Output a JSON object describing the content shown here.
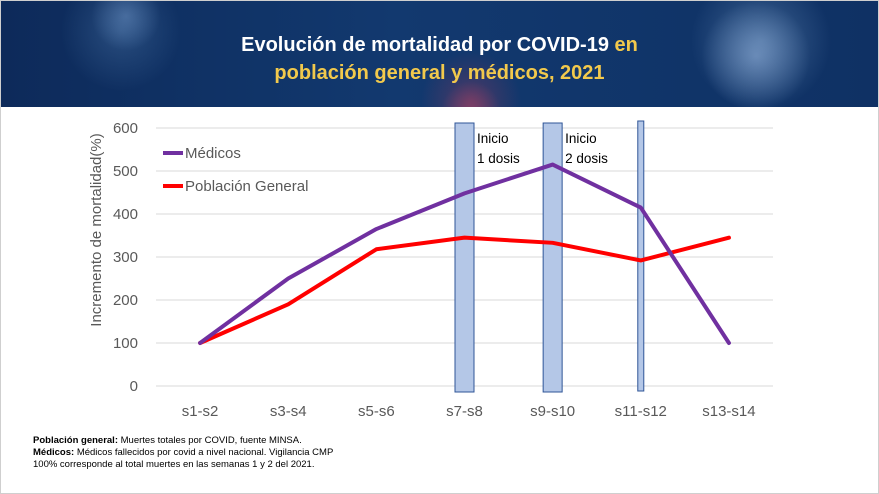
{
  "title": {
    "line1_white": "Evolución de mortalidad por COVID-19",
    "line1_yellow": "en",
    "line2_yellow": "población general y médicos, 2021"
  },
  "colors": {
    "medicos": "#7030a0",
    "poblacion": "#ff0000",
    "bands": "#b4c7e7",
    "bands_stroke": "#2f5597",
    "title_white": "#ffffff",
    "title_yellow": "#f2c94c"
  },
  "chart_data": {
    "type": "line",
    "title": "",
    "xlabel": "",
    "ylabel": "Incremento de mortalidad(%)",
    "ylim": [
      0,
      600
    ],
    "yticks": [
      "0",
      "100",
      "200",
      "300",
      "400",
      "500",
      "600"
    ],
    "grid": true,
    "legend_position": "top-left",
    "categories": [
      "s1-s2",
      "s3-s4",
      "s5-s6",
      "s7-s8",
      "s9-s10",
      "s11-s12",
      "s13-s14"
    ],
    "series": [
      {
        "name": "Médicos",
        "color": "#7030a0",
        "values": [
          100,
          250,
          365,
          448,
          515,
          415,
          100
        ]
      },
      {
        "name": "Población General",
        "color": "#ff0000",
        "values": [
          100,
          190,
          318,
          345,
          333,
          292,
          345
        ]
      }
    ],
    "annotations": [
      {
        "category": "s7-s8",
        "line1": "Inicio",
        "line2": "1 dosis"
      },
      {
        "category": "s9-s10",
        "line1": "Inicio",
        "line2": "2 dosis"
      },
      {
        "category": "s11-s12",
        "line1": "",
        "line2": ""
      }
    ]
  },
  "notes": {
    "line1_bold": "Población general:",
    "line1_text": " Muertes totales por COVID, fuente MINSA.",
    "line2_bold": "Médicos:",
    "line2_text": " Médicos fallecidos por covid a nivel nacional. Vigilancia CMP",
    "line3_text": "100% corresponde al total muertes en las semanas 1 y 2 del 2021."
  }
}
